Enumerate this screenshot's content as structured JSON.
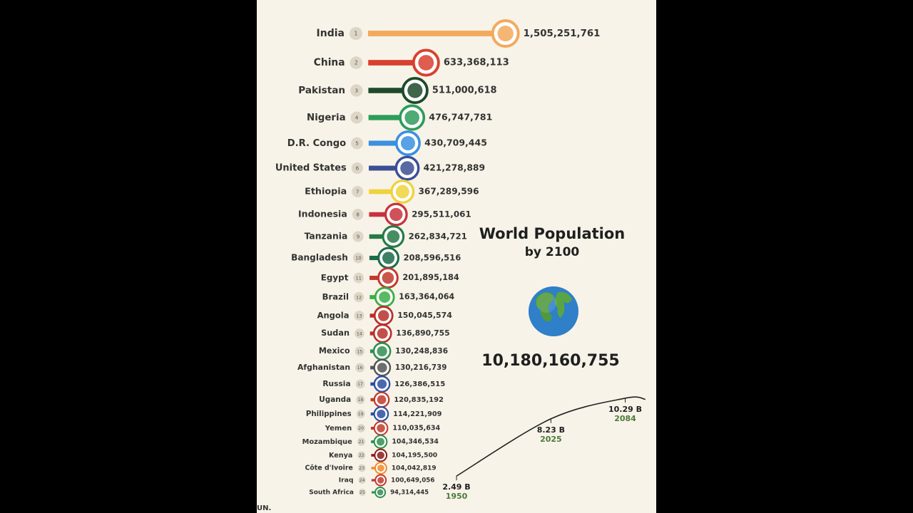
{
  "chart_data": [
    {
      "type": "hbar",
      "categories": [
        "India",
        "China",
        "Pakistan",
        "Nigeria",
        "D.R. Congo",
        "United States",
        "Ethiopia",
        "Indonesia",
        "Tanzania",
        "Bangladesh",
        "Egypt",
        "Brazil",
        "Angola",
        "Sudan",
        "Mexico",
        "Afghanistan",
        "Russia",
        "Uganda",
        "Philippines",
        "Yemen",
        "Mozambique",
        "Kenya",
        "Côte d'Ivoire",
        "Iraq",
        "South Africa"
      ],
      "ranks": [
        1,
        2,
        3,
        4,
        5,
        6,
        7,
        8,
        9,
        10,
        11,
        12,
        13,
        14,
        15,
        16,
        17,
        18,
        19,
        20,
        21,
        22,
        23,
        24,
        25
      ],
      "values": [
        1505251761,
        633368113,
        511000618,
        476747781,
        430709445,
        421278889,
        367289596,
        295511061,
        262834721,
        208596516,
        201895184,
        163364064,
        150045574,
        136890755,
        130248836,
        130216739,
        126386515,
        120835192,
        114221909,
        110035634,
        104346534,
        104195500,
        104042819,
        100649056,
        94314445
      ],
      "value_labels": [
        "1,505,251,761",
        "633,368,113",
        "511,000,618",
        "476,747,781",
        "430,709,445",
        "421,278,889",
        "367,289,596",
        "295,511,061",
        "262,834,721",
        "208,596,516",
        "201,895,184",
        "163,364,064",
        "150,045,574",
        "136,890,755",
        "130,248,836",
        "130,216,739",
        "126,386,515",
        "120,835,192",
        "114,221,909",
        "110,035,634",
        "104,346,534",
        "104,195,500",
        "104,042,819",
        "100,649,056",
        "94,314,445"
      ],
      "colors": [
        "#f3a95c",
        "#d8412f",
        "#1d4a2a",
        "#2e9c5a",
        "#3b90df",
        "#3c4f94",
        "#efd23c",
        "#c8323c",
        "#267a45",
        "#1b6a4a",
        "#c0392b",
        "#3cae45",
        "#b8302a",
        "#b8302a",
        "#2f8f4e",
        "#555555",
        "#2c4ea0",
        "#c0392b",
        "#2c4ea0",
        "#c0392b",
        "#2f8f4e",
        "#8b1a1a",
        "#f08a2a",
        "#c0392b",
        "#2f8f4e"
      ],
      "title": "World Population",
      "subtitle": "by 2100",
      "total": "10,180,160,755",
      "source": "UN."
    },
    {
      "type": "line",
      "x": [
        1950,
        2025,
        2084,
        2100
      ],
      "values": [
        2.49,
        8.23,
        10.29,
        10.18
      ],
      "value_labels": [
        "2.49 B",
        "8.23 B",
        "10.29 B",
        null
      ],
      "color": "#222222",
      "label_color": "#4c7a3a"
    }
  ]
}
